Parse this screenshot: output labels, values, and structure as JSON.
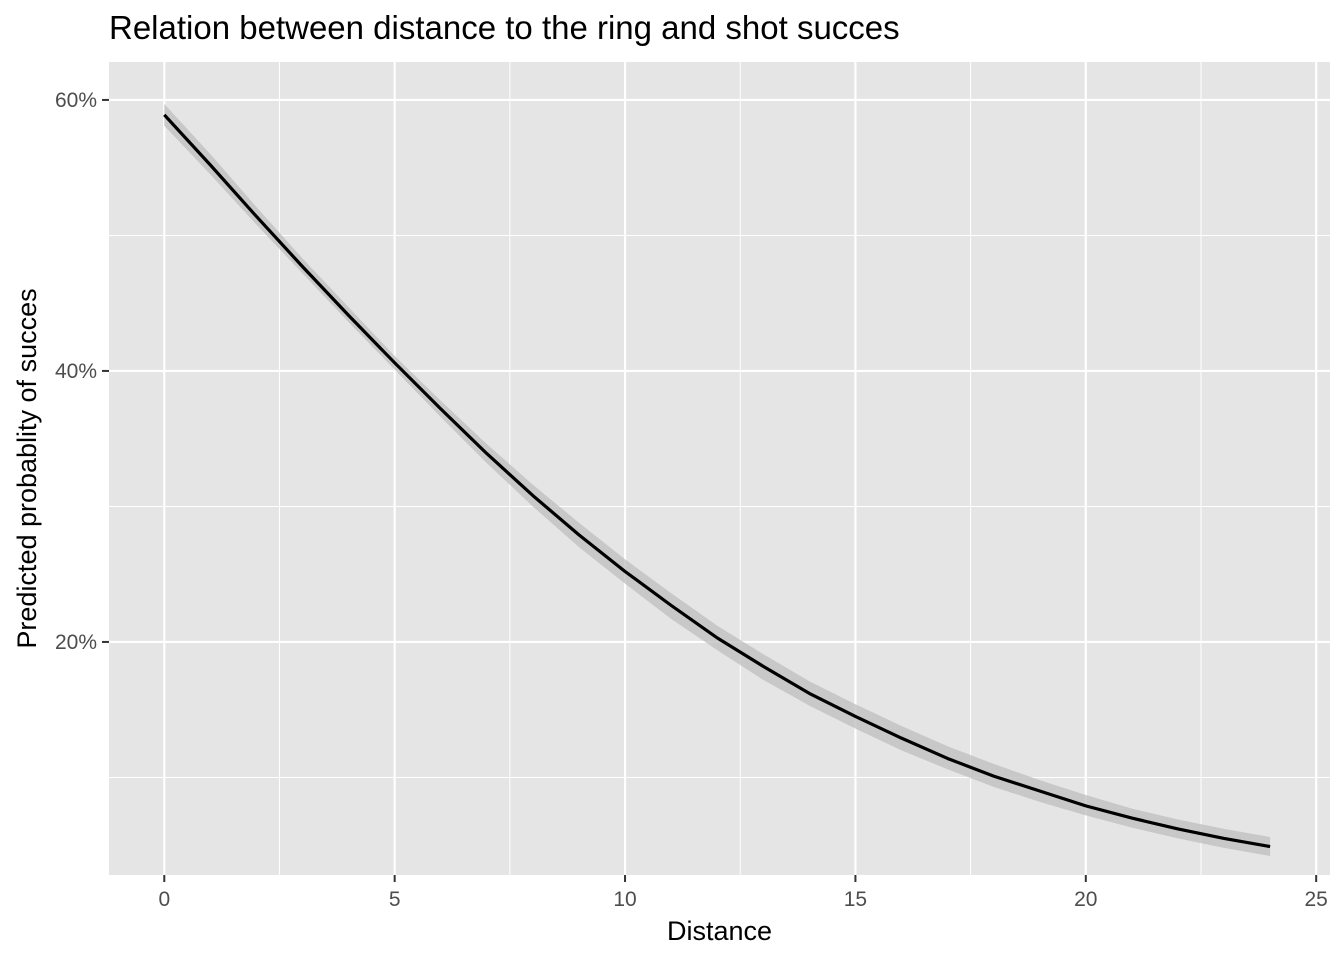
{
  "chart_data": {
    "type": "line",
    "title": "Relation between distance to the ring and shot succes",
    "xlabel": "Distance",
    "ylabel": "Predicted probablity of succes",
    "xlim": [
      -1.2,
      25.3
    ],
    "ylim": [
      0.028,
      0.628
    ],
    "x_ticks": [
      0,
      5,
      10,
      15,
      20,
      25
    ],
    "x_tick_labels": [
      "0",
      "5",
      "10",
      "15",
      "20",
      "25"
    ],
    "y_ticks": [
      0.2,
      0.4,
      0.6
    ],
    "y_tick_labels": [
      "20%",
      "40%",
      "60%"
    ],
    "grid": true,
    "legend": "none",
    "colors": {
      "panel": "#e5e5e5",
      "grid": "#ffffff",
      "line": "#000000",
      "ribbon": "#bdbdbd"
    },
    "series": [
      {
        "x": [
          0,
          1,
          2,
          3,
          4,
          5,
          6,
          7,
          8,
          9,
          10,
          11,
          12,
          13,
          14,
          15,
          16,
          17,
          18,
          19,
          20,
          21,
          22,
          23,
          24
        ],
        "y": [
          0.589,
          0.552,
          0.514,
          0.477,
          0.441,
          0.406,
          0.372,
          0.339,
          0.308,
          0.279,
          0.252,
          0.227,
          0.203,
          0.182,
          0.162,
          0.145,
          0.129,
          0.114,
          0.101,
          0.09,
          0.079,
          0.07,
          0.062,
          0.055,
          0.049
        ],
        "lower": [
          0.581,
          0.545,
          0.508,
          0.472,
          0.436,
          0.401,
          0.366,
          0.332,
          0.3,
          0.27,
          0.243,
          0.217,
          0.194,
          0.172,
          0.153,
          0.136,
          0.12,
          0.106,
          0.093,
          0.082,
          0.072,
          0.063,
          0.055,
          0.048,
          0.042
        ],
        "upper": [
          0.597,
          0.56,
          0.521,
          0.483,
          0.447,
          0.411,
          0.378,
          0.346,
          0.316,
          0.288,
          0.261,
          0.236,
          0.212,
          0.191,
          0.171,
          0.154,
          0.138,
          0.123,
          0.11,
          0.098,
          0.087,
          0.077,
          0.069,
          0.062,
          0.056
        ]
      }
    ]
  }
}
